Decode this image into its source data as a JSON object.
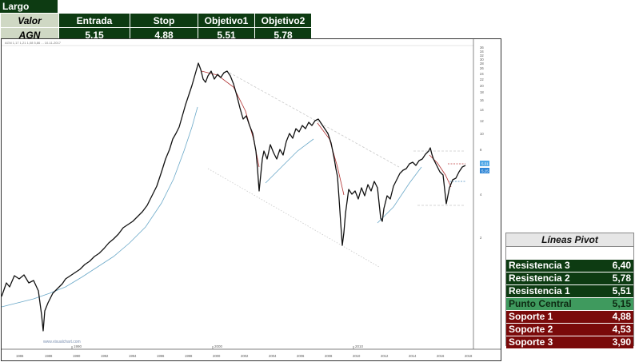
{
  "header": {
    "tag": "Largo",
    "columns": [
      "Valor",
      "Entrada",
      "Stop",
      "Objetivo1",
      "Objetivo2"
    ],
    "row": [
      "AGN",
      "5,15",
      "4,88",
      "5,51",
      "5,78"
    ]
  },
  "chart": {
    "watermark": "www.visualchart.com",
    "x_labels": [
      "1986",
      "1988",
      "1990",
      "1992",
      "1994",
      "1996",
      "1998",
      "2000",
      "2002",
      "2004",
      "2006",
      "2008",
      "2010",
      "2012",
      "2014",
      "2016",
      "2018"
    ],
    "y_labels": [
      "36",
      "34",
      "32",
      "30",
      "28",
      "26",
      "24",
      "22",
      "20",
      "18",
      "16",
      "14",
      "12",
      "10",
      "8",
      "6",
      "4",
      "2"
    ],
    "price_tags": [
      "5,51",
      "5,15"
    ],
    "colors": {
      "price": "#111111",
      "ma_red": "#b03030",
      "ma_blue": "#4a8cc0",
      "guide": "#bbbbbb"
    }
  },
  "pivot": {
    "title": "Líneas Pivot",
    "rows": [
      {
        "label": "Resistencia 3",
        "value": "6,40",
        "kind": "r"
      },
      {
        "label": "Resistencia 2",
        "value": "5,78",
        "kind": "r"
      },
      {
        "label": "Resistencia 1",
        "value": "5,51",
        "kind": "r"
      },
      {
        "label": "Punto Central",
        "value": "5,15",
        "kind": "c"
      },
      {
        "label": "Soporte 1",
        "value": "4,88",
        "kind": "s"
      },
      {
        "label": "Soporte 2",
        "value": "4,53",
        "kind": "s"
      },
      {
        "label": "Soporte 3",
        "value": "3,90",
        "kind": "s"
      }
    ]
  }
}
